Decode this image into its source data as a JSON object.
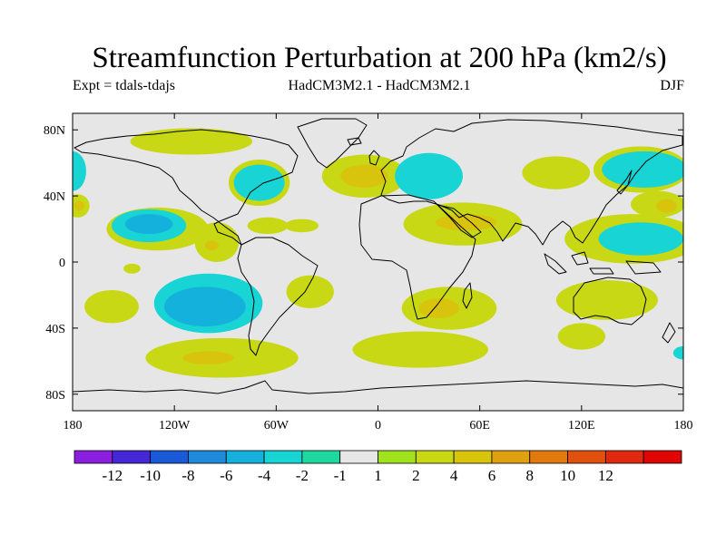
{
  "title": "Streamfunction Perturbation at 200 hPa (km2/s)",
  "subtitle_left": "Expt = tdals-tdajs",
  "subtitle_center": "HadCM3M2.1 - HadCM3M2.1",
  "subtitle_right": "DJF",
  "lat_ticks": [
    {
      "value": 80,
      "label": "80N"
    },
    {
      "value": 40,
      "label": "40N"
    },
    {
      "value": 0,
      "label": "0"
    },
    {
      "value": -40,
      "label": "40S"
    },
    {
      "value": -80,
      "label": "80S"
    }
  ],
  "lon_ticks": [
    {
      "value": -180,
      "label": "180"
    },
    {
      "value": -120,
      "label": "120W"
    },
    {
      "value": -60,
      "label": "60W"
    },
    {
      "value": 0,
      "label": "0"
    },
    {
      "value": 60,
      "label": "60E"
    },
    {
      "value": 120,
      "label": "120E"
    },
    {
      "value": 180,
      "label": "180"
    }
  ],
  "colorbar": {
    "colors": [
      "#8b1fe0",
      "#4527d8",
      "#1a5ad9",
      "#1f8ad9",
      "#14b1dd",
      "#19d4d4",
      "#1fd8a0",
      "#e6e6e6",
      "#a0e21e",
      "#c8d814",
      "#d9c40d",
      "#e0a00f",
      "#e07a0f",
      "#e0500f",
      "#e02a0f",
      "#e00505"
    ],
    "labels": [
      "-12",
      "-10",
      "-8",
      "-6",
      "-4",
      "-2",
      "-1",
      "1",
      "2",
      "4",
      "6",
      "8",
      "10",
      "12"
    ]
  },
  "chart_data": {
    "type": "heatmap",
    "title": "Streamfunction Perturbation at 200 hPa (km2/s)",
    "experiment": "Expt = tdals-tdajs",
    "model": "HadCM3M2.1 - HadCM3M2.1",
    "season": "DJF",
    "projection": "cylindrical equidistant",
    "lon_range": [
      -180,
      180
    ],
    "lat_range": [
      -90,
      90
    ],
    "contour_levels": [
      -12,
      -10,
      -8,
      -6,
      -4,
      -2,
      -1,
      1,
      2,
      4,
      6,
      8,
      10,
      12
    ],
    "anomalies": [
      {
        "lon": -180,
        "lat": 55,
        "value": -2,
        "rx": 8,
        "ry": 12
      },
      {
        "lon": -130,
        "lat": 20,
        "value": 2,
        "rx": 30,
        "ry": 13
      },
      {
        "lon": -135,
        "lat": 22,
        "value": -2,
        "rx": 22,
        "ry": 10
      },
      {
        "lon": -135,
        "lat": 23,
        "value": -4,
        "rx": 14,
        "ry": 6
      },
      {
        "lon": -177,
        "lat": 34,
        "value": 2,
        "rx": 7,
        "ry": 7
      },
      {
        "lon": -176,
        "lat": 34,
        "value": 4,
        "rx": 3,
        "ry": 3
      },
      {
        "lon": -110,
        "lat": 73,
        "value": 2,
        "rx": 36,
        "ry": 8
      },
      {
        "lon": -70,
        "lat": 48,
        "value": 2,
        "rx": 18,
        "ry": 14
      },
      {
        "lon": -70,
        "lat": 48,
        "value": -2,
        "rx": 15,
        "ry": 11
      },
      {
        "lon": -95,
        "lat": 12,
        "value": 2,
        "rx": 13,
        "ry": 12
      },
      {
        "lon": -98,
        "lat": 10,
        "value": 4,
        "rx": 4,
        "ry": 3
      },
      {
        "lon": -65,
        "lat": 22,
        "value": 2,
        "rx": 12,
        "ry": 5
      },
      {
        "lon": -45,
        "lat": 22,
        "value": 2,
        "rx": 10,
        "ry": 4
      },
      {
        "lon": -145,
        "lat": -4,
        "value": 2,
        "rx": 5,
        "ry": 3
      },
      {
        "lon": -100,
        "lat": -25,
        "value": -2,
        "rx": 32,
        "ry": 18
      },
      {
        "lon": -102,
        "lat": -27,
        "value": -4,
        "rx": 24,
        "ry": 12
      },
      {
        "lon": -157,
        "lat": -27,
        "value": 2,
        "rx": 16,
        "ry": 10
      },
      {
        "lon": -92,
        "lat": -58,
        "value": 2,
        "rx": 45,
        "ry": 12
      },
      {
        "lon": -100,
        "lat": -58,
        "value": 4,
        "rx": 15,
        "ry": 4
      },
      {
        "lon": -40,
        "lat": -18,
        "value": 2,
        "rx": 14,
        "ry": 10
      },
      {
        "lon": -8,
        "lat": 52,
        "value": 2,
        "rx": 25,
        "ry": 13
      },
      {
        "lon": -8,
        "lat": 52,
        "value": 4,
        "rx": 14,
        "ry": 7
      },
      {
        "lon": 30,
        "lat": 52,
        "value": -2,
        "rx": 20,
        "ry": 14
      },
      {
        "lon": 50,
        "lat": 23,
        "value": 2,
        "rx": 35,
        "ry": 13
      },
      {
        "lon": 52,
        "lat": 24,
        "value": 4,
        "rx": 18,
        "ry": 5
      },
      {
        "lon": 42,
        "lat": -28,
        "value": 2,
        "rx": 28,
        "ry": 13
      },
      {
        "lon": 36,
        "lat": -28,
        "value": 4,
        "rx": 12,
        "ry": 6
      },
      {
        "lon": 25,
        "lat": -53,
        "value": 2,
        "rx": 40,
        "ry": 11
      },
      {
        "lon": 105,
        "lat": 54,
        "value": 2,
        "rx": 20,
        "ry": 10
      },
      {
        "lon": 155,
        "lat": 56,
        "value": 2,
        "rx": 28,
        "ry": 14
      },
      {
        "lon": 157,
        "lat": 56,
        "value": -2,
        "rx": 25,
        "ry": 11
      },
      {
        "lon": 165,
        "lat": 35,
        "value": 2,
        "rx": 16,
        "ry": 8
      },
      {
        "lon": 170,
        "lat": 34,
        "value": 4,
        "rx": 6,
        "ry": 4
      },
      {
        "lon": 150,
        "lat": 14,
        "value": 2,
        "rx": 40,
        "ry": 15
      },
      {
        "lon": 155,
        "lat": 14,
        "value": -2,
        "rx": 25,
        "ry": 10
      },
      {
        "lon": 135,
        "lat": -23,
        "value": 2,
        "rx": 30,
        "ry": 12
      },
      {
        "lon": 120,
        "lat": -45,
        "value": 2,
        "rx": 14,
        "ry": 8
      },
      {
        "lon": 180,
        "lat": -55,
        "value": -2,
        "rx": 6,
        "ry": 4
      }
    ]
  }
}
